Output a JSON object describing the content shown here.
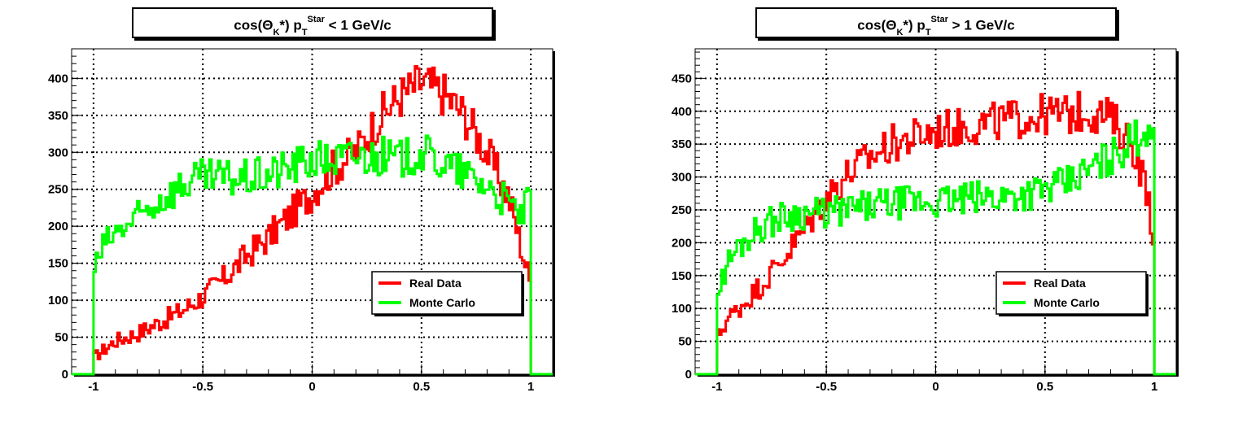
{
  "chart_data": [
    {
      "type": "line",
      "title": {
        "prefix": "cos(Θ",
        "sub1": "K",
        "mid": "*) p",
        "sub2": "T",
        "sup": "Star",
        "suffix": " < 1 GeV/c"
      },
      "xlim": [
        -1.1,
        1.1
      ],
      "ylim": [
        0,
        440
      ],
      "xticks": [
        -1,
        -0.5,
        0,
        0.5,
        1
      ],
      "xtick_labels": [
        "-1",
        "-0.5",
        "0",
        "0.5",
        "1"
      ],
      "yticks": [
        0,
        50,
        100,
        150,
        200,
        250,
        300,
        350,
        400
      ],
      "ytick_labels": [
        "0",
        "50",
        "100",
        "150",
        "200",
        "250",
        "300",
        "350",
        "400"
      ],
      "grid": true,
      "legend": "bottom-right",
      "series": [
        {
          "name": "Real Data",
          "color": "#ff0000",
          "x": [
            -1.0,
            -0.9,
            -0.8,
            -0.7,
            -0.6,
            -0.5,
            -0.4,
            -0.3,
            -0.2,
            -0.1,
            0.0,
            0.1,
            0.2,
            0.3,
            0.4,
            0.5,
            0.6,
            0.7,
            0.8,
            0.9,
            0.95,
            1.0
          ],
          "y": [
            22,
            45,
            55,
            70,
            85,
            105,
            130,
            160,
            185,
            215,
            245,
            280,
            300,
            345,
            375,
            395,
            380,
            350,
            300,
            240,
            180,
            120
          ]
        },
        {
          "name": "Monte Carlo",
          "color": "#00ff00",
          "x": [
            -1.0,
            -0.95,
            -0.9,
            -0.8,
            -0.7,
            -0.6,
            -0.5,
            -0.4,
            -0.3,
            -0.2,
            -0.1,
            0.0,
            0.1,
            0.2,
            0.3,
            0.4,
            0.5,
            0.6,
            0.7,
            0.8,
            0.9,
            0.95,
            1.0
          ],
          "y": [
            140,
            175,
            190,
            210,
            235,
            255,
            265,
            265,
            265,
            270,
            280,
            290,
            290,
            295,
            295,
            290,
            300,
            285,
            270,
            255,
            230,
            215,
            235
          ]
        }
      ]
    },
    {
      "type": "line",
      "title": {
        "prefix": "cos(Θ",
        "sub1": "K",
        "mid": "*) p",
        "sub2": "T",
        "sup": "Star",
        "suffix": " > 1 GeV/c"
      },
      "xlim": [
        -1.1,
        1.1
      ],
      "ylim": [
        0,
        495
      ],
      "xticks": [
        -1,
        -0.5,
        0,
        0.5,
        1
      ],
      "xtick_labels": [
        "-1",
        "-0.5",
        "0",
        "0.5",
        "1"
      ],
      "yticks": [
        0,
        50,
        100,
        150,
        200,
        250,
        300,
        350,
        400,
        450
      ],
      "ytick_labels": [
        "0",
        "50",
        "100",
        "150",
        "200",
        "250",
        "300",
        "350",
        "400",
        "450"
      ],
      "grid": true,
      "legend": "bottom-right",
      "series": [
        {
          "name": "Real Data",
          "color": "#ff0000",
          "x": [
            -1.0,
            -0.95,
            -0.9,
            -0.8,
            -0.7,
            -0.6,
            -0.5,
            -0.4,
            -0.3,
            -0.2,
            -0.1,
            0.0,
            0.1,
            0.2,
            0.3,
            0.4,
            0.5,
            0.6,
            0.7,
            0.8,
            0.9,
            0.95,
            1.0
          ],
          "y": [
            55,
            85,
            100,
            135,
            175,
            220,
            270,
            305,
            330,
            350,
            360,
            370,
            375,
            380,
            385,
            390,
            395,
            395,
            400,
            390,
            350,
            300,
            210
          ]
        },
        {
          "name": "Monte Carlo",
          "color": "#00ff00",
          "x": [
            -1.0,
            -0.95,
            -0.9,
            -0.8,
            -0.7,
            -0.6,
            -0.5,
            -0.4,
            -0.3,
            -0.2,
            -0.1,
            0.0,
            0.1,
            0.2,
            0.3,
            0.4,
            0.5,
            0.6,
            0.7,
            0.8,
            0.9,
            0.95,
            1.0
          ],
          "y": [
            120,
            170,
            195,
            225,
            240,
            245,
            245,
            250,
            255,
            260,
            262,
            262,
            265,
            268,
            270,
            275,
            280,
            290,
            310,
            330,
            355,
            370,
            385
          ]
        }
      ]
    }
  ]
}
